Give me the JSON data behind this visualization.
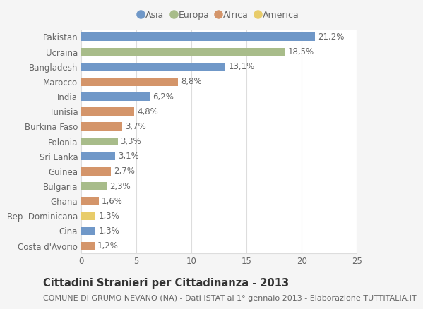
{
  "categories": [
    "Costa d'Avorio",
    "Cina",
    "Rep. Dominicana",
    "Ghana",
    "Bulgaria",
    "Guinea",
    "Sri Lanka",
    "Polonia",
    "Burkina Faso",
    "Tunisia",
    "India",
    "Marocco",
    "Bangladesh",
    "Ucraina",
    "Pakistan"
  ],
  "values": [
    1.2,
    1.3,
    1.3,
    1.6,
    2.3,
    2.7,
    3.1,
    3.3,
    3.7,
    4.8,
    6.2,
    8.8,
    13.1,
    18.5,
    21.2
  ],
  "labels": [
    "1,2%",
    "1,3%",
    "1,3%",
    "1,6%",
    "2,3%",
    "2,7%",
    "3,1%",
    "3,3%",
    "3,7%",
    "4,8%",
    "6,2%",
    "8,8%",
    "13,1%",
    "18,5%",
    "21,2%"
  ],
  "continents": [
    "Africa",
    "Asia",
    "America",
    "Africa",
    "Europa",
    "Africa",
    "Asia",
    "Europa",
    "Africa",
    "Africa",
    "Asia",
    "Africa",
    "Asia",
    "Europa",
    "Asia"
  ],
  "colors": {
    "Asia": "#7098c8",
    "Europa": "#a8bc8a",
    "Africa": "#d4956a",
    "America": "#e8cc6a"
  },
  "legend_order": [
    "Asia",
    "Europa",
    "Africa",
    "America"
  ],
  "title": "Cittadini Stranieri per Cittadinanza - 2013",
  "subtitle": "COMUNE DI GRUMO NEVANO (NA) - Dati ISTAT al 1° gennaio 2013 - Elaborazione TUTTITALIA.IT",
  "xlim": [
    0,
    25
  ],
  "xticks": [
    0,
    5,
    10,
    15,
    20,
    25
  ],
  "background_color": "#f5f5f5",
  "bar_background": "#ffffff",
  "grid_color": "#dddddd",
  "text_color": "#666666",
  "label_fontsize": 8.5,
  "title_fontsize": 10.5,
  "subtitle_fontsize": 8.0
}
